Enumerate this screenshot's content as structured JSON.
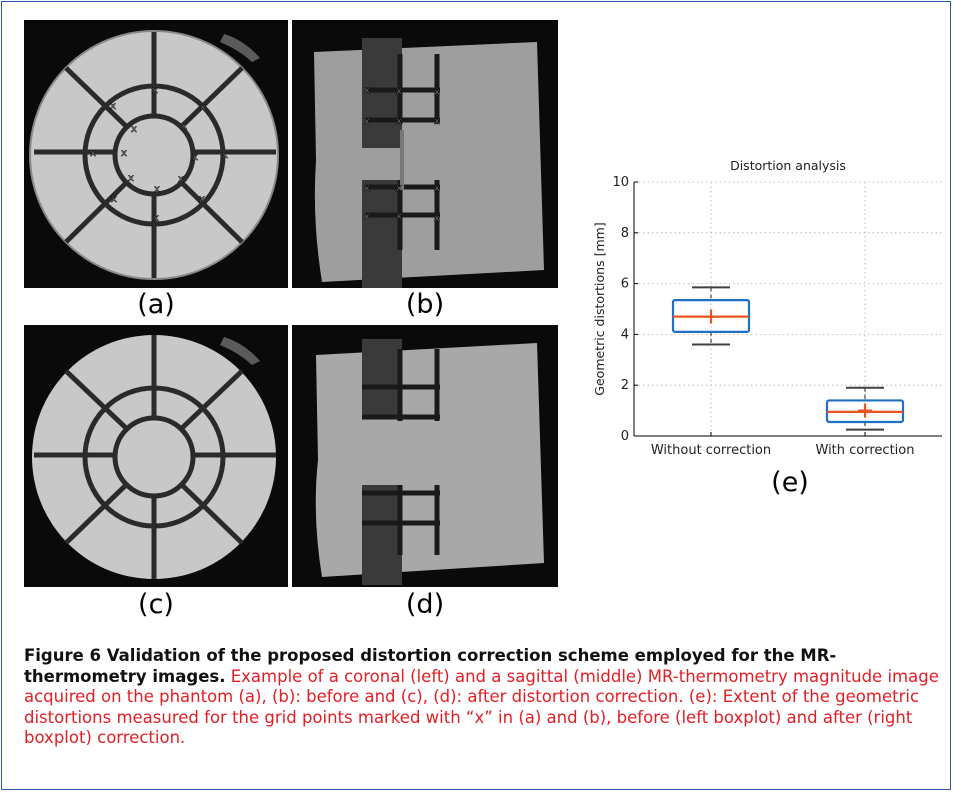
{
  "panels": {
    "a": {
      "label": "(a)",
      "marker_symbol": "x"
    },
    "b": {
      "label": "(b)",
      "marker_symbol": "x"
    },
    "c": {
      "label": "(c)"
    },
    "d": {
      "label": "(d)"
    },
    "e": {
      "label": "(e)"
    }
  },
  "caption": {
    "bold": "Figure 6 Validation of the proposed distortion correction scheme employed for the MR-thermometry images.",
    "body": "Example of a coronal (left) and a sagittal (middle) MR-thermometry magnitude image acquired on the phantom (a), (b): before and (c), (d): after distortion correction. (e): Extent of the geometric distortions measured for the grid points marked with “x” in (a) and (b), before (left boxplot) and after (right boxplot) correction."
  },
  "colors": {
    "box": "#1f6fc5",
    "median": "#e8561f",
    "whisker": "#404040",
    "frame": "#2a5aa8",
    "caption_text": "#e31e24"
  },
  "chart_data": {
    "type": "boxplot",
    "title": "Distortion analysis",
    "xlabel": "",
    "ylabel": "Geometric distortions [mm]",
    "ylim": [
      0,
      10
    ],
    "yticks": [
      "0",
      "2",
      "4",
      "6",
      "8",
      "10"
    ],
    "grid": true,
    "categories": [
      "Without correction",
      "With correction"
    ],
    "series": [
      {
        "category": "Without correction",
        "min": 3.6,
        "q1": 4.1,
        "median": 4.7,
        "q3": 5.35,
        "max": 5.85,
        "mean": 4.7
      },
      {
        "category": "With correction",
        "min": 0.25,
        "q1": 0.55,
        "median": 0.95,
        "q3": 1.4,
        "max": 1.9,
        "mean": 1.0
      }
    ]
  }
}
